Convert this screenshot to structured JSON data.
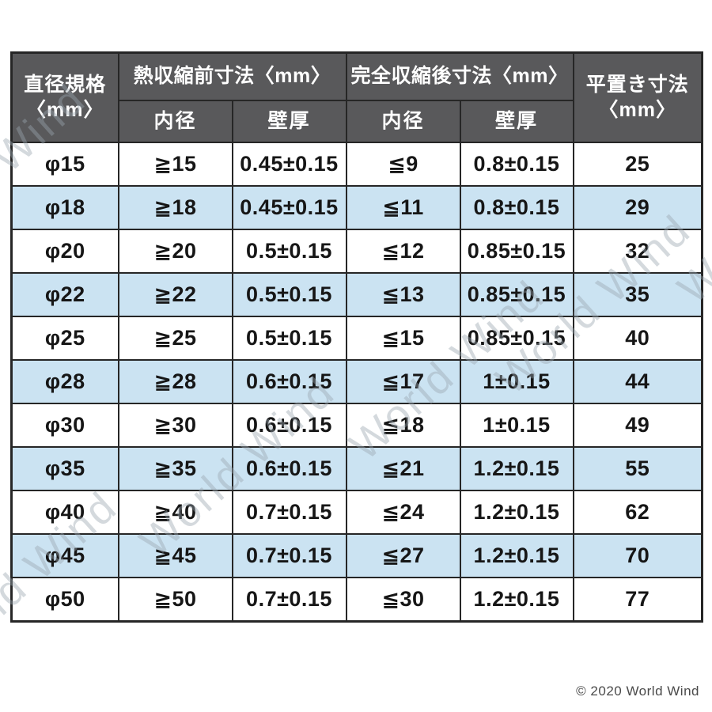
{
  "table": {
    "header": {
      "diameter": "直径規格\n〈mm〉",
      "before_group": "熱収縮前寸法〈mm〉",
      "after_group": "完全収縮後寸法〈mm〉",
      "flat": "平置き寸法\n〈mm〉",
      "sub_inner": "内径",
      "sub_wall": "壁厚"
    },
    "colors": {
      "header_bg": "#59595b",
      "row_alt": "#cbe3f2",
      "border": "#262626",
      "body_text": "#161616"
    }
  },
  "chart_data": {
    "type": "table",
    "title": "熱収縮チューブ寸法表",
    "columns": [
      "直径規格〈mm〉",
      "熱収縮前寸法〈mm〉 内径",
      "熱収縮前寸法〈mm〉 壁厚",
      "完全収縮後寸法〈mm〉 内径",
      "完全収縮後寸法〈mm〉 壁厚",
      "平置き寸法〈mm〉"
    ],
    "header_groups": [
      {
        "label": "直径規格〈mm〉",
        "span": 1
      },
      {
        "label": "熱収縮前寸法〈mm〉",
        "span": 2,
        "subcolumns": [
          "内径",
          "壁厚"
        ]
      },
      {
        "label": "完全収縮後寸法〈mm〉",
        "span": 2,
        "subcolumns": [
          "内径",
          "壁厚"
        ]
      },
      {
        "label": "平置き寸法〈mm〉",
        "span": 1
      }
    ],
    "rows": [
      [
        "φ15",
        "≧15",
        "0.45±0.15",
        "≦9",
        "0.8±0.15",
        "25"
      ],
      [
        "φ18",
        "≧18",
        "0.45±0.15",
        "≦11",
        "0.8±0.15",
        "29"
      ],
      [
        "φ20",
        "≧20",
        "0.5±0.15",
        "≦12",
        "0.85±0.15",
        "32"
      ],
      [
        "φ22",
        "≧22",
        "0.5±0.15",
        "≦13",
        "0.85±0.15",
        "35"
      ],
      [
        "φ25",
        "≧25",
        "0.5±0.15",
        "≦15",
        "0.85±0.15",
        "40"
      ],
      [
        "φ28",
        "≧28",
        "0.6±0.15",
        "≦17",
        "1±0.15",
        "44"
      ],
      [
        "φ30",
        "≧30",
        "0.6±0.15",
        "≦18",
        "1±0.15",
        "49"
      ],
      [
        "φ35",
        "≧35",
        "0.6±0.15",
        "≦21",
        "1.2±0.15",
        "55"
      ],
      [
        "φ40",
        "≧40",
        "0.7±0.15",
        "≦24",
        "1.2±0.15",
        "62"
      ],
      [
        "φ45",
        "≧45",
        "0.7±0.15",
        "≦27",
        "1.2±0.15",
        "70"
      ],
      [
        "φ50",
        "≧50",
        "0.7±0.15",
        "≦30",
        "1.2±0.15",
        "77"
      ]
    ]
  },
  "watermark": {
    "text": "World Wind"
  },
  "footer": {
    "copyright": "© 2020 World Wind"
  }
}
